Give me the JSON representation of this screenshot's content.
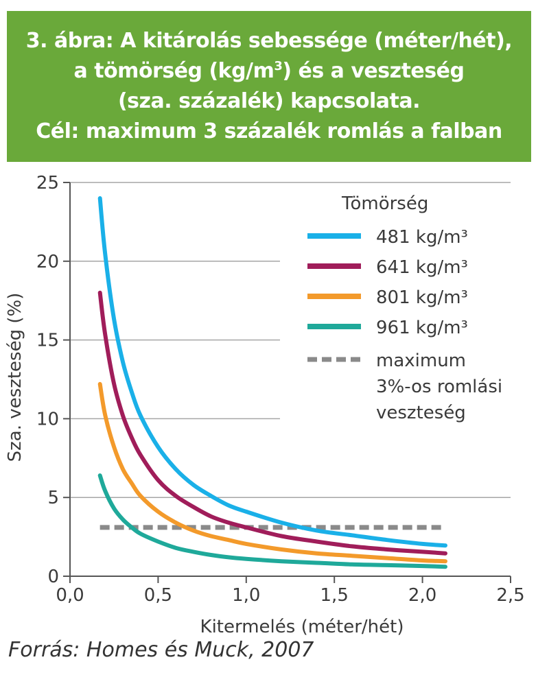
{
  "title": {
    "line1": "3. ábra: A kitárolás sebessége (méter/hét),",
    "line2_pre": "a tömörség (kg/m",
    "line2_sup": "3",
    "line2_post": ") és a veszteség",
    "line3": "(sza. százalék) kapcsolata.",
    "line4": "Cél: maximum 3 százalék romlás a falban"
  },
  "source": "Forrás: Homes és Muck, 2007",
  "colors": {
    "title_bg": "#6aa93a",
    "grid": "#a6a6a6",
    "axis": "#555555"
  },
  "chart_data": {
    "type": "line",
    "xlabel": "Kitermelés (méter/hét)",
    "ylabel": "Sza. veszteség (%)",
    "xlim": [
      0,
      2.5
    ],
    "ylim": [
      0,
      25
    ],
    "x_ticks": [
      {
        "v": 0,
        "label": "0,0"
      },
      {
        "v": 0.5,
        "label": "0,5"
      },
      {
        "v": 1.0,
        "label": "1,0"
      },
      {
        "v": 1.5,
        "label": "1,5"
      },
      {
        "v": 2.0,
        "label": "2,0"
      },
      {
        "v": 2.5,
        "label": "2,5"
      }
    ],
    "y_ticks": [
      {
        "v": 0,
        "label": "0"
      },
      {
        "v": 5,
        "label": "5"
      },
      {
        "v": 10,
        "label": "10"
      },
      {
        "v": 15,
        "label": "15"
      },
      {
        "v": 20,
        "label": "20"
      },
      {
        "v": 25,
        "label": "25"
      }
    ],
    "grid": "horizontal",
    "legend_title": "Tömörség",
    "legend_position": "top-right",
    "x": [
      0.17,
      0.2,
      0.25,
      0.3,
      0.35,
      0.4,
      0.5,
      0.6,
      0.7,
      0.8,
      0.9,
      1.0,
      1.2,
      1.4,
      1.6,
      1.8,
      2.0,
      2.13
    ],
    "series": [
      {
        "name": "481 kg/m³",
        "color": "#1ab0e8",
        "values": [
          24.0,
          20.4,
          16.3,
          13.6,
          11.7,
          10.2,
          8.2,
          6.8,
          5.8,
          5.1,
          4.5,
          4.1,
          3.4,
          2.9,
          2.6,
          2.3,
          2.05,
          1.95
        ]
      },
      {
        "name": "641 kg/m³",
        "color": "#a01d5a",
        "values": [
          18.0,
          15.3,
          12.2,
          10.2,
          8.8,
          7.7,
          6.1,
          5.1,
          4.4,
          3.8,
          3.4,
          3.1,
          2.55,
          2.2,
          1.9,
          1.7,
          1.55,
          1.45
        ]
      },
      {
        "name": "801 kg/m³",
        "color": "#f39a2b",
        "values": [
          12.2,
          10.2,
          8.2,
          6.8,
          5.9,
          5.1,
          4.1,
          3.4,
          2.9,
          2.55,
          2.3,
          2.05,
          1.7,
          1.45,
          1.3,
          1.15,
          1.0,
          0.95
        ]
      },
      {
        "name": "961 kg/m³",
        "color": "#1fa99a",
        "values": [
          6.4,
          5.4,
          4.3,
          3.6,
          3.1,
          2.7,
          2.2,
          1.8,
          1.55,
          1.35,
          1.2,
          1.1,
          0.95,
          0.85,
          0.75,
          0.7,
          0.65,
          0.6
        ]
      }
    ],
    "threshold": {
      "name_lines": [
        "maximum",
        "3%-os romlási",
        "veszteség"
      ],
      "value": 3.1,
      "x_range": [
        0.17,
        2.13
      ],
      "color": "#8a8a8a"
    }
  }
}
